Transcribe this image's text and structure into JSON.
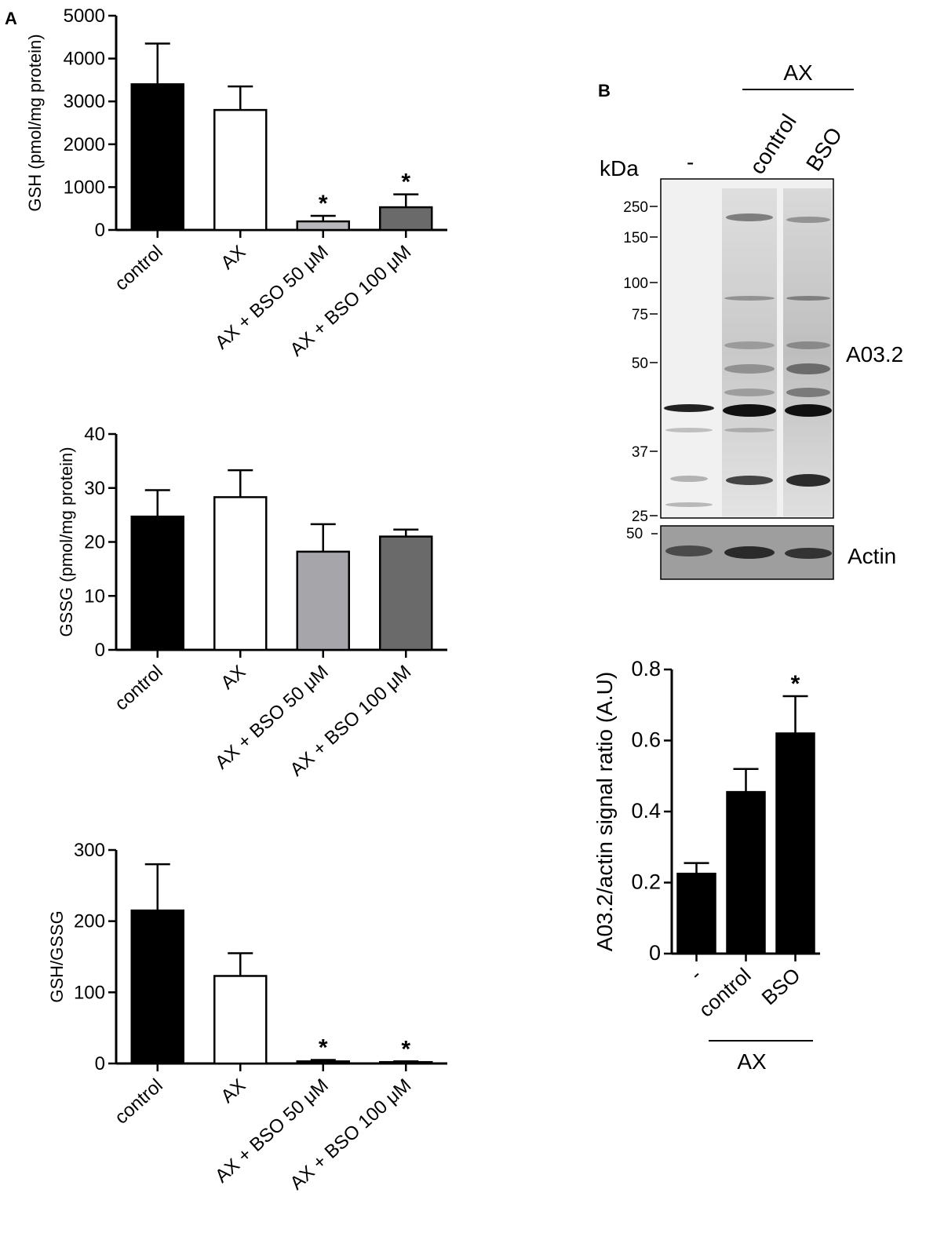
{
  "panels": {
    "a": "A",
    "b": "B"
  },
  "western_blot": {
    "header_group": "AX",
    "unit_label": "kDa",
    "lanes": [
      "-",
      "control",
      "BSO"
    ],
    "markers": [
      "250",
      "150",
      "100",
      "75",
      "50",
      "37",
      "25"
    ],
    "actin_marker": "50",
    "protein_label": "A03.2",
    "loading_label": "Actin"
  },
  "group_label": "AX",
  "chart_data": [
    {
      "type": "bar",
      "categories": [
        "control",
        "AX",
        "AX + BSO 50 μM",
        "AX + BSO 100 μM"
      ],
      "values": [
        3400,
        2800,
        200,
        530
      ],
      "errors": [
        950,
        550,
        130,
        300
      ],
      "significance": [
        "",
        "",
        "*",
        "*"
      ],
      "colors": [
        "#000000",
        "#ffffff",
        "#b8b8bc",
        "#6a6a6a"
      ],
      "ylabel": "GSH (pmol/mg protein)",
      "ylim": [
        0,
        5000
      ],
      "yticks": [
        "0",
        "1000",
        "2000",
        "3000",
        "4000",
        "5000"
      ]
    },
    {
      "type": "bar",
      "categories": [
        "control",
        "AX",
        "AX + BSO 50 μM",
        "AX + BSO 100 μM"
      ],
      "values": [
        24.7,
        28.3,
        18.2,
        21.0
      ],
      "errors": [
        4.9,
        5.0,
        5.1,
        1.3
      ],
      "significance": [
        "",
        "",
        "",
        ""
      ],
      "colors": [
        "#000000",
        "#ffffff",
        "#a5a5aa",
        "#6a6a6a"
      ],
      "ylabel": "GSSG (pmol/mg protein)",
      "ylim": [
        0,
        40
      ],
      "yticks": [
        "0",
        "10",
        "20",
        "30",
        "40"
      ]
    },
    {
      "type": "bar",
      "categories": [
        "control",
        "AX",
        "AX + BSO 50 μM",
        "AX + BSO 100 μM"
      ],
      "values": [
        215,
        123,
        3,
        2
      ],
      "errors": [
        65,
        32,
        2,
        1
      ],
      "significance": [
        "",
        "",
        "*",
        "*"
      ],
      "colors": [
        "#000000",
        "#ffffff",
        "#000000",
        "#000000"
      ],
      "ylabel": "GSH/GSSG",
      "ylim": [
        0,
        300
      ],
      "yticks": [
        "0",
        "100",
        "200",
        "300"
      ]
    },
    {
      "type": "bar",
      "categories": [
        "-",
        "control",
        "BSO"
      ],
      "values": [
        0.225,
        0.455,
        0.62
      ],
      "errors": [
        0.03,
        0.065,
        0.105
      ],
      "significance": [
        "",
        "",
        "*"
      ],
      "colors": [
        "#000000",
        "#000000",
        "#000000"
      ],
      "ylabel": "A03.2/actin signal ratio (A.U)",
      "ylim": [
        0,
        0.8
      ],
      "yticks": [
        "0",
        "0.2",
        "0.4",
        "0.6",
        "0.8"
      ]
    }
  ]
}
